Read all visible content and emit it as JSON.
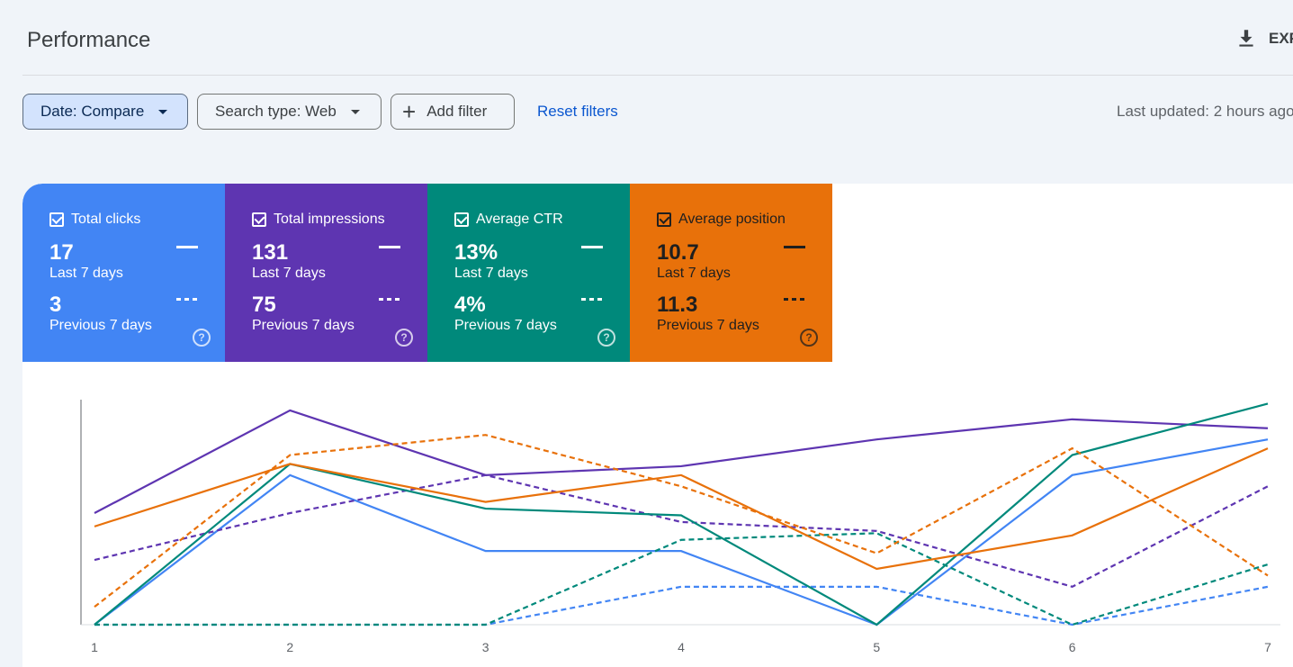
{
  "header": {
    "title": "Performance",
    "export_label": "EXPORT"
  },
  "filters": {
    "date_label": "Date: Compare",
    "search_type_label": "Search type: Web",
    "add_filter_label": "Add filter",
    "reset_label": "Reset filters",
    "last_updated": "Last updated: 2 hours ago"
  },
  "cards": [
    {
      "title": "Total clicks",
      "current": "17",
      "current_label": "Last 7 days",
      "previous": "3",
      "previous_label": "Previous 7 days",
      "color": "#4285f4"
    },
    {
      "title": "Total impressions",
      "current": "131",
      "current_label": "Last 7 days",
      "previous": "75",
      "previous_label": "Previous 7 days",
      "color": "#5e35b1"
    },
    {
      "title": "Average CTR",
      "current": "13%",
      "current_label": "Last 7 days",
      "previous": "4%",
      "previous_label": "Previous 7 days",
      "color": "#00897b"
    },
    {
      "title": "Average position",
      "current": "10.7",
      "current_label": "Last 7 days",
      "previous": "11.3",
      "previous_label": "Previous 7 days",
      "color": "#e8710a"
    }
  ],
  "chart_data": {
    "type": "line",
    "x": [
      1,
      2,
      3,
      4,
      5,
      6,
      7
    ],
    "ylim": [
      0,
      1
    ],
    "series": [
      {
        "metric": "clicks",
        "period": "current",
        "color": "#4285f4",
        "dashed": false,
        "values": [
          0.0,
          0.67,
          0.33,
          0.33,
          0.0,
          0.67,
          0.83
        ]
      },
      {
        "metric": "clicks",
        "period": "previous",
        "color": "#4285f4",
        "dashed": true,
        "values": [
          0.0,
          0.0,
          0.0,
          0.17,
          0.17,
          0.0,
          0.17
        ]
      },
      {
        "metric": "impressions",
        "period": "current",
        "color": "#5e35b1",
        "dashed": false,
        "values": [
          0.5,
          0.96,
          0.67,
          0.71,
          0.83,
          0.92,
          0.88
        ]
      },
      {
        "metric": "impressions",
        "period": "previous",
        "color": "#5e35b1",
        "dashed": true,
        "values": [
          0.29,
          0.5,
          0.67,
          0.46,
          0.42,
          0.17,
          0.62
        ]
      },
      {
        "metric": "ctr",
        "period": "current",
        "color": "#00897b",
        "dashed": false,
        "values": [
          0.0,
          0.72,
          0.52,
          0.49,
          0.0,
          0.76,
          0.99
        ]
      },
      {
        "metric": "ctr",
        "period": "previous",
        "color": "#00897b",
        "dashed": true,
        "values": [
          0.0,
          0.0,
          0.0,
          0.38,
          0.41,
          0.0,
          0.27
        ]
      },
      {
        "metric": "position",
        "period": "current",
        "color": "#e8710a",
        "dashed": false,
        "values": [
          0.44,
          0.72,
          0.55,
          0.67,
          0.25,
          0.4,
          0.79
        ]
      },
      {
        "metric": "position",
        "period": "previous",
        "color": "#e8710a",
        "dashed": true,
        "values": [
          0.08,
          0.76,
          0.85,
          0.62,
          0.32,
          0.79,
          0.22
        ]
      }
    ]
  }
}
